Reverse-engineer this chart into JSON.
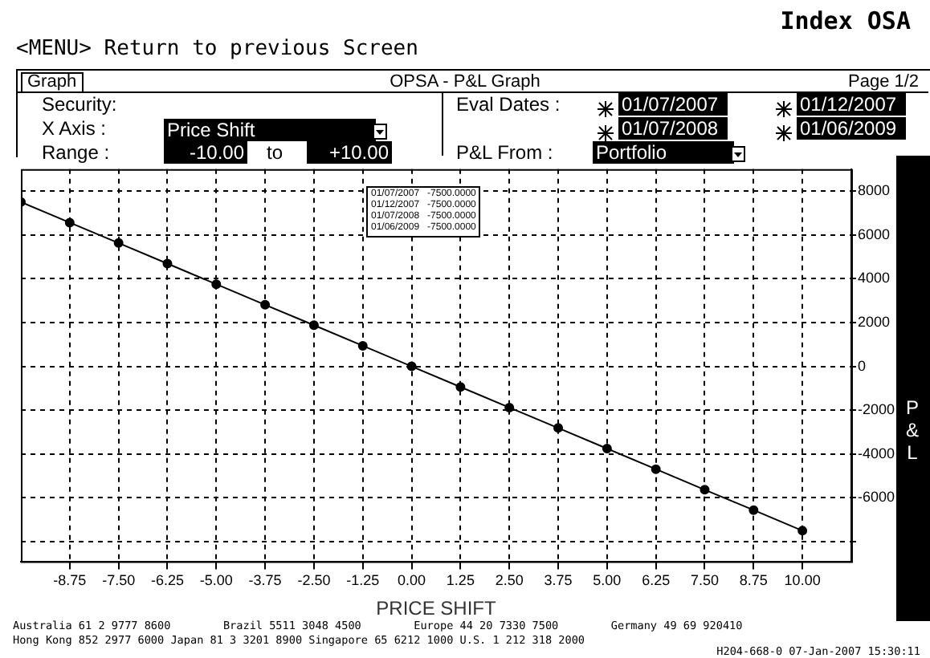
{
  "chart_data": {
    "type": "line",
    "title": "OPSA - P&L Graph",
    "xlabel": "PRICE SHIFT",
    "ylabel": "P&L",
    "x": [
      -10,
      -8.75,
      -7.5,
      -6.25,
      -5,
      -3.75,
      -2.5,
      -1.25,
      0,
      1.25,
      2.5,
      3.75,
      5,
      6.25,
      7.5,
      8.75,
      10
    ],
    "series": [
      {
        "color": "#000000",
        "values": [
          7500,
          6560,
          5630,
          4690,
          3750,
          2810,
          1880,
          940,
          0,
          -940,
          -1880,
          -2810,
          -3750,
          -4690,
          -5630,
          -6560,
          -7500
        ]
      }
    ],
    "xlim": [
      -10,
      11.25
    ],
    "xticks": [
      -8.75,
      {
        "value": -7.5,
        "label": "-7.50"
      },
      -6.25,
      {
        "value": -5,
        "label": "-5.00"
      },
      -3.75,
      {
        "value": -2.5,
        "label": "-2.50"
      },
      -1.25,
      {
        "value": 0,
        "label": "0.00"
      },
      1.25,
      {
        "value": 2.5,
        "label": "2.50"
      },
      3.75,
      {
        "value": 5,
        "label": "5.00"
      },
      6.25,
      {
        "value": 7.5,
        "label": "7.50"
      },
      8.75,
      {
        "value": 10,
        "label": "10.00"
      }
    ],
    "ylim": [
      -8900,
      9000
    ],
    "yticks": [
      {
        "value": -8000,
        "label": null
      },
      -6000,
      -4000,
      -2000,
      0,
      2000,
      4000,
      6000,
      8000
    ],
    "grid": true,
    "marker": "circle",
    "line_style": "solid",
    "annotations": [
      "Index OSA",
      "<MENU> Return to previous Screen",
      "Graph",
      "Page 1/2",
      "Security:",
      "X Axis :",
      "Price Shift",
      "Range :",
      "-10.00",
      "to",
      "+10.00",
      "Eval Dates :",
      "01/07/2007",
      "01/12/2007",
      "01/07/2008",
      "01/06/2009",
      "P&L From :",
      "Portfolio",
      "01/07/2007   -7500.0000",
      "01/12/2007   -7500.0000",
      "01/07/2008   -7500.0000",
      "01/06/2009   -7500.0000",
      "Australia 61 2 9777 8600        Brazil 5511 3048 4500        Europe 44 20 7330 7500        Germany 49 69 920410",
      "Hong Kong 852 2977 6000 Japan 81 3 3201 8900 Singapore 65 6212 1000 U.S. 1 212 318 2000",
      "H204-668-0 07-Jan-2007 15:30:11"
    ]
  }
}
